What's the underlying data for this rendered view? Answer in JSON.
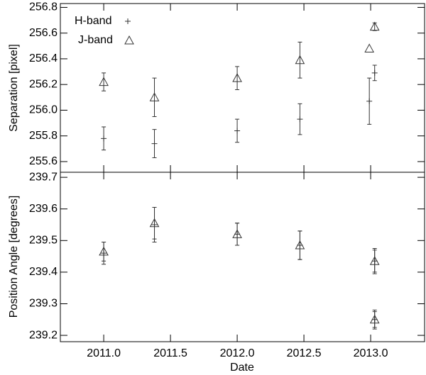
{
  "chart_data": [
    {
      "type": "scatter",
      "ylabel": "Separation [pixel]",
      "x": [
        2011.0,
        2011.38,
        2012.0,
        2012.47,
        2012.99,
        2013.03
      ],
      "xlim": [
        2010.675,
        2013.404
      ],
      "ylim": [
        255.517,
        256.83
      ],
      "yticks": [
        255.6,
        255.8,
        {
          "value": 256.0,
          "label": "256.0"
        },
        256.2,
        256.4,
        256.6,
        256.8
      ],
      "legend": "upper left",
      "series": [
        {
          "name": "H-band",
          "marker": "plus",
          "color": "#333333",
          "values": [
            255.78,
            255.74,
            255.84,
            255.93,
            256.07,
            256.29
          ],
          "errors": [
            0.09,
            0.11,
            0.09,
            0.12,
            0.18,
            0.06
          ]
        },
        {
          "name": "J-band",
          "marker": "triangle",
          "color": "#333333",
          "values": [
            256.22,
            256.1,
            256.25,
            256.39,
            256.48,
            256.65
          ],
          "errors": [
            0.07,
            0.15,
            0.09,
            0.14,
            null,
            0.03
          ]
        }
      ]
    },
    {
      "type": "scatter",
      "ylabel": "Position Angle [degrees]",
      "xlabel": "Date",
      "x": [
        2011.0,
        2011.38,
        2012.0,
        2012.47,
        2013.03,
        2013.03
      ],
      "xlim": [
        2010.675,
        2013.404
      ],
      "xticks": [
        {
          "value": 2011.0,
          "label": "2011.0"
        },
        2011.5,
        {
          "value": 2012.0,
          "label": "2012.0"
        },
        2012.5,
        {
          "value": 2013.0,
          "label": "2013.0"
        }
      ],
      "ylim": [
        239.18,
        239.716
      ],
      "yticks": [
        239.2,
        239.3,
        239.4,
        239.5,
        239.6,
        239.7
      ],
      "series": [
        {
          "marker": "plus",
          "color": "#333333",
          "values": [
            239.46,
            239.55,
            239.52,
            239.485,
            239.435,
            239.25
          ],
          "errors": [
            0.035,
            0.055,
            0.035,
            0.045,
            0.04,
            0.03
          ]
        },
        {
          "marker": "triangle",
          "color": "#333333",
          "values": [
            239.465,
            239.555,
            239.52,
            239.485,
            239.435,
            239.25
          ],
          "errors": [
            0.03,
            0.05,
            0.035,
            0.045,
            0.035,
            0.025
          ]
        }
      ]
    }
  ]
}
